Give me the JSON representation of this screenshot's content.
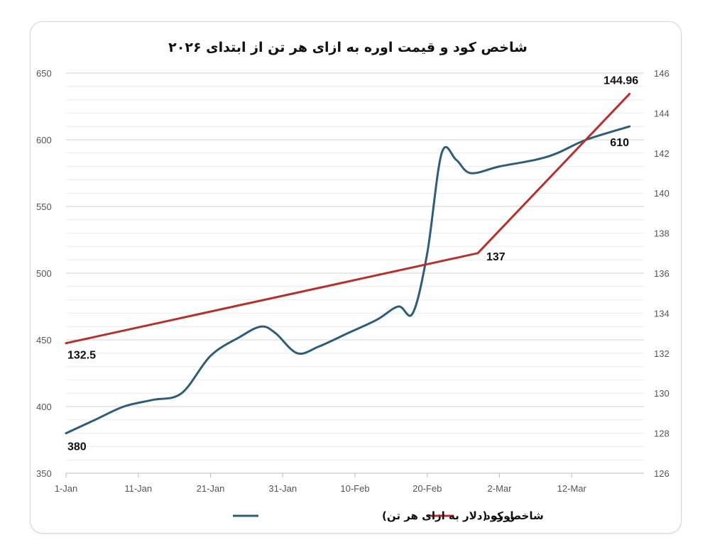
{
  "chart_data": {
    "type": "line",
    "title": "شاخص کود و قیمت اوره به ازای هر تن از ابتدای ۲۰۲۶",
    "x_ticks": [
      "1-Jan",
      "11-Jan",
      "21-Jan",
      "31-Jan",
      "10-Feb",
      "20-Feb",
      "2-Mar",
      "12-Mar"
    ],
    "y_left": {
      "min": 350,
      "max": 650,
      "ticks": [
        350,
        400,
        450,
        500,
        550,
        600,
        650
      ]
    },
    "y_right": {
      "min": 126,
      "max": 146,
      "ticks": [
        126,
        128,
        130,
        132,
        134,
        136,
        138,
        140,
        142,
        144,
        146
      ]
    },
    "grid": true,
    "legend_position": "bottom",
    "series": [
      {
        "name": "اوره (دلار به ازای هر تن)",
        "axis": "left",
        "color": "#2e5d7a",
        "points": [
          [
            "2026-01-01",
            380
          ],
          [
            "2026-01-05",
            390
          ],
          [
            "2026-01-09",
            400
          ],
          [
            "2026-01-13",
            405
          ],
          [
            "2026-01-17",
            410
          ],
          [
            "2026-01-21",
            438
          ],
          [
            "2026-01-25",
            452
          ],
          [
            "2026-01-28",
            460
          ],
          [
            "2026-01-30",
            455
          ],
          [
            "2026-02-02",
            440
          ],
          [
            "2026-02-05",
            445
          ],
          [
            "2026-02-09",
            455
          ],
          [
            "2026-02-13",
            465
          ],
          [
            "2026-02-16",
            475
          ],
          [
            "2026-02-18",
            470
          ],
          [
            "2026-02-20",
            515
          ],
          [
            "2026-02-22",
            590
          ],
          [
            "2026-02-24",
            585
          ],
          [
            "2026-02-26",
            575
          ],
          [
            "2026-03-02",
            580
          ],
          [
            "2026-03-07",
            585
          ],
          [
            "2026-03-10",
            590
          ],
          [
            "2026-03-14",
            600
          ],
          [
            "2026-03-20",
            610
          ]
        ],
        "labels": [
          {
            "date": "2026-01-01",
            "value": 380,
            "text": "380"
          },
          {
            "date": "2026-03-20",
            "value": 610,
            "text": "610"
          }
        ]
      },
      {
        "name": "شاخص کود",
        "axis": "right",
        "color": "#b5322c",
        "points": [
          [
            "2026-01-01",
            132.5
          ],
          [
            "2026-02-27",
            137
          ],
          [
            "2026-03-20",
            144.96
          ]
        ],
        "labels": [
          {
            "date": "2026-01-01",
            "value": 132.5,
            "text": "132.5"
          },
          {
            "date": "2026-02-27",
            "value": 137,
            "text": "137"
          },
          {
            "date": "2026-03-20",
            "value": 144.96,
            "text": "144.96"
          }
        ]
      }
    ]
  }
}
